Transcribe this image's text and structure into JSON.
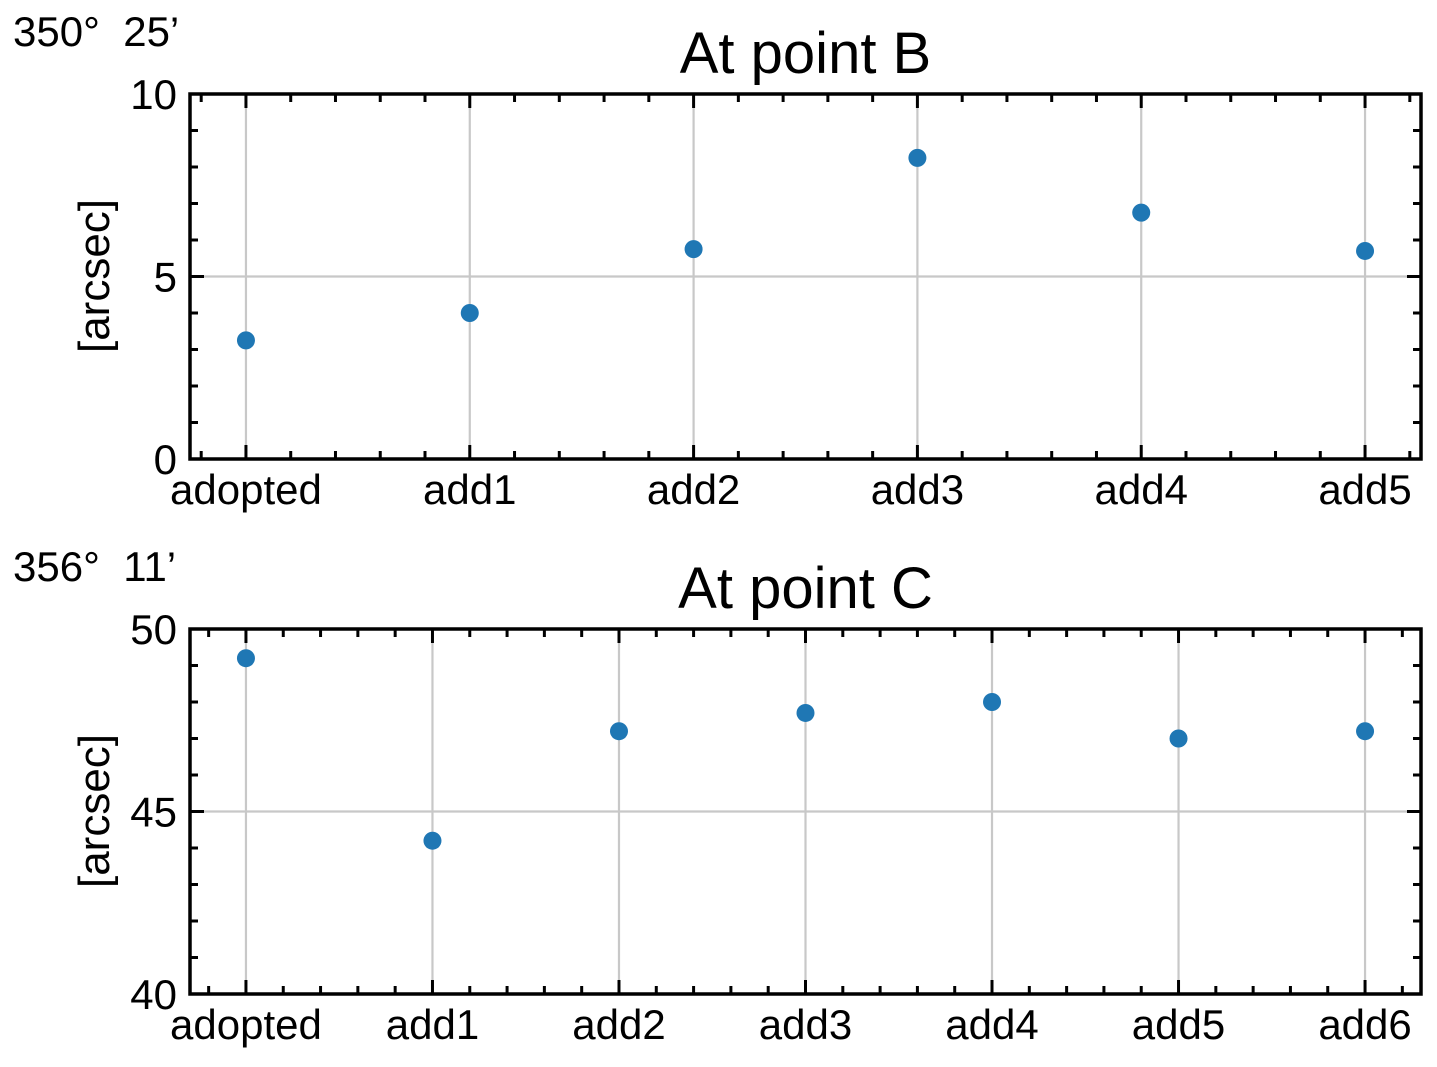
{
  "figure": {
    "background": "#ffffff",
    "text_color": "#000000"
  },
  "chart_data": [
    {
      "type": "scatter",
      "title": "At point B",
      "corner_annotation": "350°  25’",
      "ylabel": "[arcsec]",
      "xlabel": "",
      "categories": [
        "adopted",
        "add1",
        "add2",
        "add3",
        "add4",
        "add5"
      ],
      "values": [
        3.25,
        4.0,
        5.75,
        8.25,
        6.75,
        5.7
      ],
      "ylim": [
        0,
        10
      ],
      "yticks": [
        0,
        5,
        10
      ],
      "ytick_labels": [
        "0",
        "5",
        "10"
      ],
      "y_minor_step": 1,
      "x_minor_divisions": 5,
      "grid": true,
      "legend": "none",
      "marker_color": "#1f77b4",
      "grid_color": "#c8c8c8",
      "axis_color": "#000000"
    },
    {
      "type": "scatter",
      "title": "At point C",
      "corner_annotation": "356°  11’",
      "ylabel": "[arcsec]",
      "xlabel": "",
      "categories": [
        "adopted",
        "add1",
        "add2",
        "add3",
        "add4",
        "add5",
        "add6"
      ],
      "values": [
        49.2,
        44.2,
        47.2,
        47.7,
        48.0,
        47.0,
        47.2
      ],
      "ylim": [
        40,
        50
      ],
      "yticks": [
        40,
        45,
        50
      ],
      "ytick_labels": [
        "40",
        "45",
        "50"
      ],
      "y_minor_step": 1,
      "x_minor_divisions": 5,
      "grid": true,
      "legend": "none",
      "marker_color": "#1f77b4",
      "grid_color": "#c8c8c8",
      "axis_color": "#000000"
    }
  ]
}
